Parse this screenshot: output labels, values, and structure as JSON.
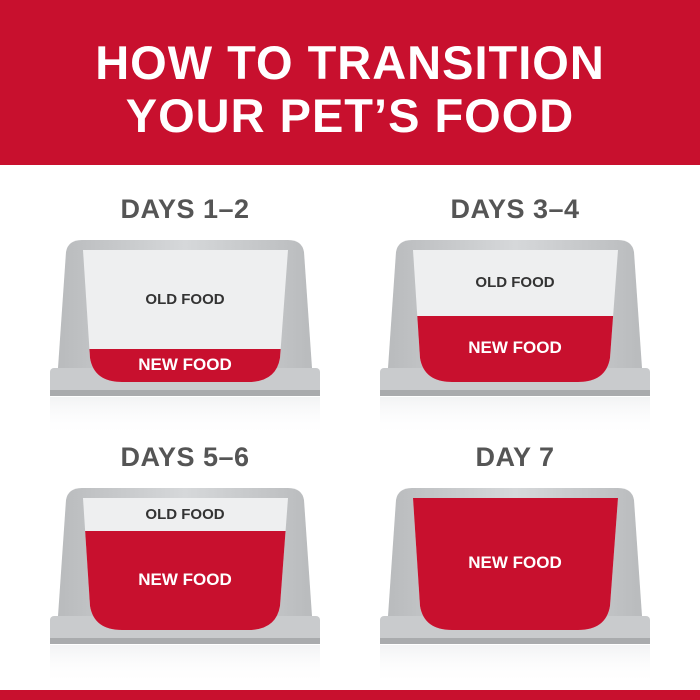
{
  "title": {
    "line1": "HOW TO TRANSITION",
    "line2": "YOUR PET’S FOOD"
  },
  "colors": {
    "brand_red": "#c8102e",
    "bowl_gray": "#c4c6c8",
    "old_food": "#eeeff0"
  },
  "steps": [
    {
      "heading": "DAYS 1–2",
      "old_label": "OLD FOOD",
      "new_label": "NEW FOOD",
      "new_food_fraction": 0.25
    },
    {
      "heading": "DAYS 3–4",
      "old_label": "OLD FOOD",
      "new_label": "NEW FOOD",
      "new_food_fraction": 0.5
    },
    {
      "heading": "DAYS 5–6",
      "old_label": "OLD FOOD",
      "new_label": "NEW FOOD",
      "new_food_fraction": 0.75
    },
    {
      "heading": "DAY 7",
      "old_label": "",
      "new_label": "NEW FOOD",
      "new_food_fraction": 1.0
    }
  ]
}
